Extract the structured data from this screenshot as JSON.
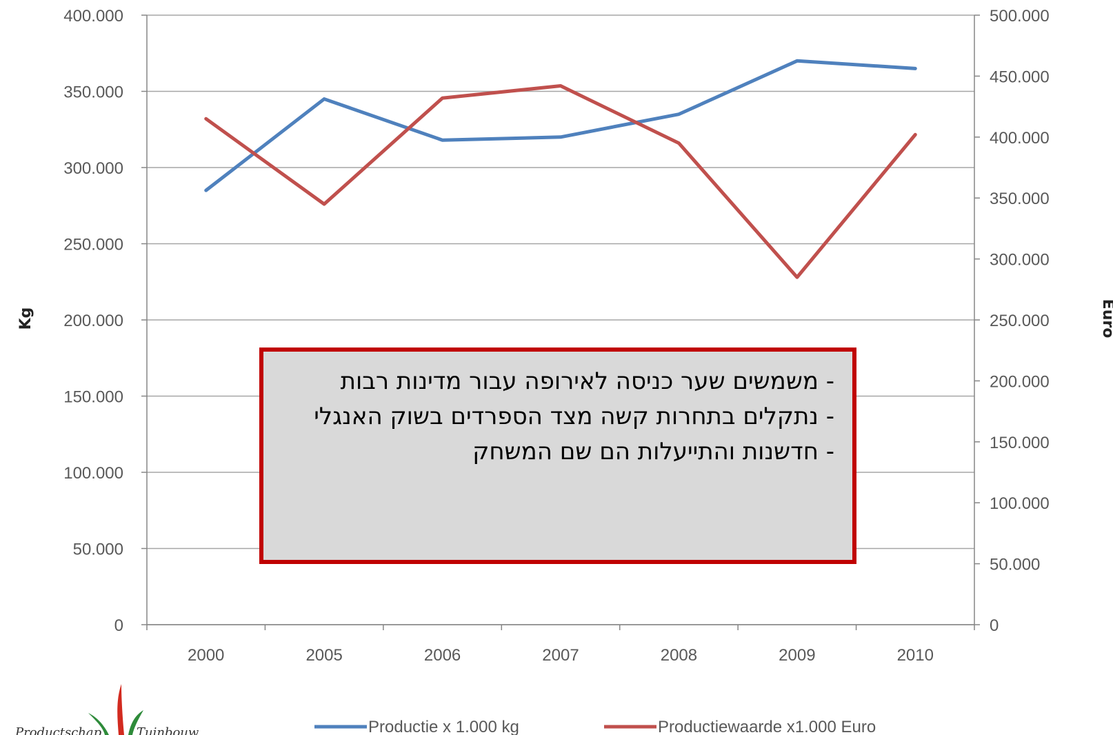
{
  "chart_data": {
    "type": "line",
    "categories": [
      "2000",
      "2005",
      "2006",
      "2007",
      "2008",
      "2009",
      "2010"
    ],
    "series": [
      {
        "name": "Productie x 1.000 kg",
        "axis": "left",
        "color": "#4f81bd",
        "values": [
          285000,
          345000,
          318000,
          320000,
          335000,
          370000,
          365000
        ]
      },
      {
        "name": "Productiewaarde x1.000 Euro",
        "axis": "right",
        "color": "#c0504d",
        "values": [
          415000,
          345000,
          432000,
          442000,
          395000,
          285000,
          402000
        ]
      }
    ],
    "left_axis": {
      "label": "Kg",
      "ylim": [
        0,
        400000
      ],
      "ticks": [
        "0",
        "50.000",
        "100.000",
        "150.000",
        "200.000",
        "250.000",
        "300.000",
        "350.000",
        "400.000"
      ]
    },
    "right_axis": {
      "label": "Euro",
      "ylim": [
        0,
        500000
      ],
      "ticks": [
        "0",
        "50.000",
        "100.000",
        "150.000",
        "200.000",
        "250.000",
        "300.000",
        "350.000",
        "400.000",
        "450.000",
        "500.000"
      ]
    },
    "grid": true,
    "legend_position": "bottom"
  },
  "annotation": {
    "lines": [
      "- משמשים שער כניסה לאירופה עבור מדינות רבות",
      "- נתקלים בתחרות קשה מצד הספרדים בשוק האנגלי",
      "- חדשנות והתייעלות הם שם המשחק"
    ]
  },
  "logo": {
    "left_text": "Productschap",
    "right_text": "Tuinbouw"
  },
  "colors": {
    "grid": "#a6a6a6",
    "axis": "#868686",
    "box_border": "#c00000",
    "box_fill": "#d9d9d9"
  }
}
